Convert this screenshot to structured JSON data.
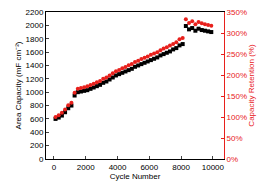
{
  "chart_data": {
    "type": "scatter",
    "xlabel": "Cycle Number",
    "ylabel": "Area Capacity (mF cm⁻²)",
    "y2label": "Capacity Retention (%)",
    "x": [
      100,
      300,
      500,
      700,
      900,
      1100,
      1300,
      1500,
      1700,
      1900,
      2100,
      2300,
      2500,
      2700,
      2900,
      3100,
      3300,
      3500,
      3700,
      3900,
      4100,
      4300,
      4500,
      4700,
      4900,
      5100,
      5300,
      5500,
      5700,
      5900,
      6100,
      6300,
      6500,
      6700,
      6900,
      7100,
      7300,
      7500,
      7700,
      7900,
      8100,
      8300,
      8500,
      8700,
      8900,
      9100,
      9300,
      9500,
      9700,
      9900
    ],
    "series": [
      {
        "name": "Area Capacity",
        "color": "#000000",
        "marker": "square",
        "values": [
          600,
          620,
          650,
          700,
          760,
          800,
          950,
          1000,
          1010,
          1020,
          1030,
          1050,
          1070,
          1090,
          1110,
          1140,
          1160,
          1190,
          1220,
          1250,
          1270,
          1290,
          1310,
          1330,
          1350,
          1380,
          1400,
          1420,
          1440,
          1460,
          1480,
          1500,
          1520,
          1550,
          1570,
          1590,
          1610,
          1640,
          1660,
          1700,
          1720,
          1990,
          1940,
          1960,
          1920,
          1950,
          1930,
          1920,
          1910,
          1900
        ]
      },
      {
        "name": "Capacity Retention",
        "color": "#e8201c",
        "marker": "circle",
        "axis": "y2",
        "values": [
          100,
          104,
          110,
          118,
          128,
          134,
          158,
          167,
          169,
          171,
          173,
          176,
          179,
          183,
          186,
          191,
          194,
          199,
          204,
          209,
          212,
          216,
          219,
          223,
          226,
          231,
          234,
          238,
          241,
          244,
          248,
          251,
          254,
          259,
          263,
          266,
          270,
          274,
          278,
          285,
          288,
          333,
          324,
          328,
          321,
          326,
          323,
          321,
          319,
          317
        ]
      }
    ],
    "xlim": [
      -500,
      10700
    ],
    "xticks": [
      0,
      2000,
      4000,
      6000,
      8000,
      10000
    ],
    "ylim": [
      0,
      2200
    ],
    "yticks": [
      0,
      200,
      400,
      600,
      800,
      1000,
      1200,
      1400,
      1600,
      1800,
      2000,
      2200
    ],
    "y2lim": [
      0,
      350
    ],
    "y2ticks": [
      {
        "value": 0,
        "label": "0%"
      },
      {
        "value": 50,
        "label": "50%"
      },
      {
        "value": 100,
        "label": "100%"
      },
      {
        "value": 150,
        "label": "150%"
      },
      {
        "value": 200,
        "label": "200%"
      },
      {
        "value": 250,
        "label": "250%"
      },
      {
        "value": 300,
        "label": "300%"
      },
      {
        "value": 350,
        "label": "350%"
      }
    ],
    "grid": false
  }
}
